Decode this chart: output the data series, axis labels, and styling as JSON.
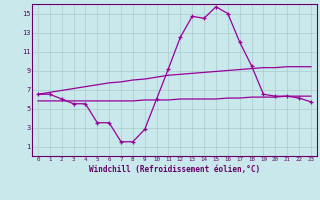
{
  "x": [
    0,
    1,
    2,
    3,
    4,
    5,
    6,
    7,
    8,
    9,
    10,
    11,
    12,
    13,
    14,
    15,
    16,
    17,
    18,
    19,
    20,
    21,
    22,
    23
  ],
  "y_main": [
    6.5,
    6.5,
    6.0,
    5.5,
    5.5,
    3.5,
    3.5,
    1.5,
    1.5,
    2.8,
    6.0,
    9.2,
    12.5,
    14.7,
    14.5,
    15.7,
    15.0,
    12.0,
    9.5,
    6.5,
    6.3,
    6.3,
    6.1,
    5.7
  ],
  "y_upper": [
    6.5,
    6.7,
    6.9,
    7.1,
    7.3,
    7.5,
    7.7,
    7.8,
    8.0,
    8.1,
    8.3,
    8.5,
    8.6,
    8.7,
    8.8,
    8.9,
    9.0,
    9.1,
    9.2,
    9.3,
    9.3,
    9.4,
    9.4,
    9.4
  ],
  "y_lower": [
    5.8,
    5.8,
    5.8,
    5.8,
    5.8,
    5.8,
    5.8,
    5.8,
    5.8,
    5.9,
    5.9,
    5.9,
    6.0,
    6.0,
    6.0,
    6.0,
    6.1,
    6.1,
    6.2,
    6.2,
    6.2,
    6.3,
    6.3,
    6.3
  ],
  "line_color": "#990099",
  "bg_color": "#c8e8ec",
  "grid_color": "#aacccc",
  "axis_color": "#660066",
  "xlabel": "Windchill (Refroidissement éolien,°C)",
  "ylim": [
    0,
    16
  ],
  "xlim": [
    -0.5,
    23.5
  ],
  "yticks": [
    1,
    3,
    5,
    7,
    9,
    11,
    13,
    15
  ],
  "xticks": [
    0,
    1,
    2,
    3,
    4,
    5,
    6,
    7,
    8,
    9,
    10,
    11,
    12,
    13,
    14,
    15,
    16,
    17,
    18,
    19,
    20,
    21,
    22,
    23
  ]
}
